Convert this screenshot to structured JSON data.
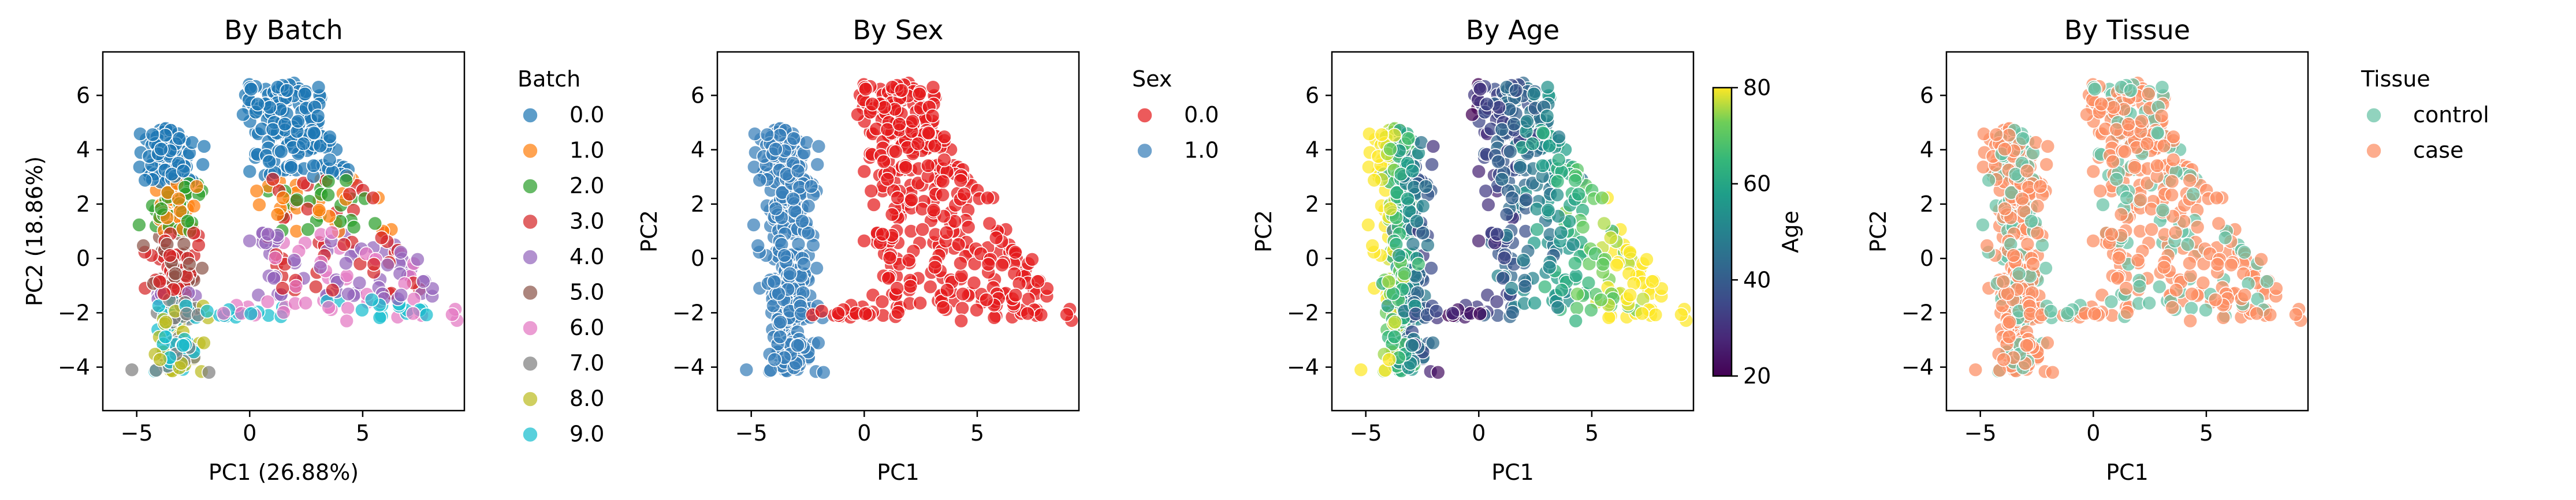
{
  "chart_data": [
    {
      "type": "scatter",
      "title": "By Batch",
      "xlabel": "PC1 (26.88%)",
      "ylabel": "PC2 (18.86%)",
      "xlim": [
        -6.5,
        9.5
      ],
      "ylim": [
        -5.6,
        7.6
      ],
      "xticks": [
        -5,
        0,
        5
      ],
      "yticks": [
        -4,
        -2,
        0,
        2,
        4,
        6
      ],
      "legend": {
        "title": "Batch",
        "placement": "right-outside",
        "entries": [
          "0.0",
          "1.0",
          "2.0",
          "3.0",
          "4.0",
          "5.0",
          "6.0",
          "7.0",
          "8.0",
          "9.0"
        ]
      },
      "colors": [
        "#1f77b4",
        "#ff7f0e",
        "#2ca02c",
        "#d62728",
        "#9467bd",
        "#8c564b",
        "#e377c2",
        "#7f7f7f",
        "#bcbd22",
        "#17becf"
      ]
    },
    {
      "type": "scatter",
      "title": "By Sex",
      "xlabel": "PC1",
      "ylabel": "PC2",
      "xlim": [
        -6.5,
        9.5
      ],
      "ylim": [
        -5.6,
        7.6
      ],
      "xticks": [
        -5,
        0,
        5
      ],
      "yticks": [
        -4,
        -2,
        0,
        2,
        4,
        6
      ],
      "legend": {
        "title": "Sex",
        "placement": "right-outside",
        "entries": [
          "0.0",
          "1.0"
        ]
      },
      "colors": [
        "#e41a1c",
        "#377eb8"
      ]
    },
    {
      "type": "scatter",
      "title": "By Age",
      "xlabel": "PC1",
      "ylabel": "PC2",
      "xlim": [
        -6.5,
        9.5
      ],
      "ylim": [
        -5.6,
        7.6
      ],
      "xticks": [
        -5,
        0,
        5
      ],
      "yticks": [
        -4,
        -2,
        0,
        2,
        4,
        6
      ],
      "colorbar": {
        "label": "Age",
        "range": [
          20,
          80
        ],
        "ticks": [
          20,
          40,
          60,
          80
        ],
        "colormap": "viridis"
      }
    },
    {
      "type": "scatter",
      "title": "By Tissue",
      "xlabel": "PC1",
      "ylabel": "PC2",
      "xlim": [
        -6.5,
        9.5
      ],
      "ylim": [
        -5.6,
        7.6
      ],
      "xticks": [
        -5,
        0,
        5
      ],
      "yticks": [
        -4,
        -2,
        0,
        2,
        4,
        6
      ],
      "legend": {
        "title": "Tissue",
        "placement": "right-outside",
        "entries": [
          "control",
          "case"
        ]
      },
      "colors": [
        "#66c2a5",
        "#fc8d62"
      ]
    }
  ]
}
